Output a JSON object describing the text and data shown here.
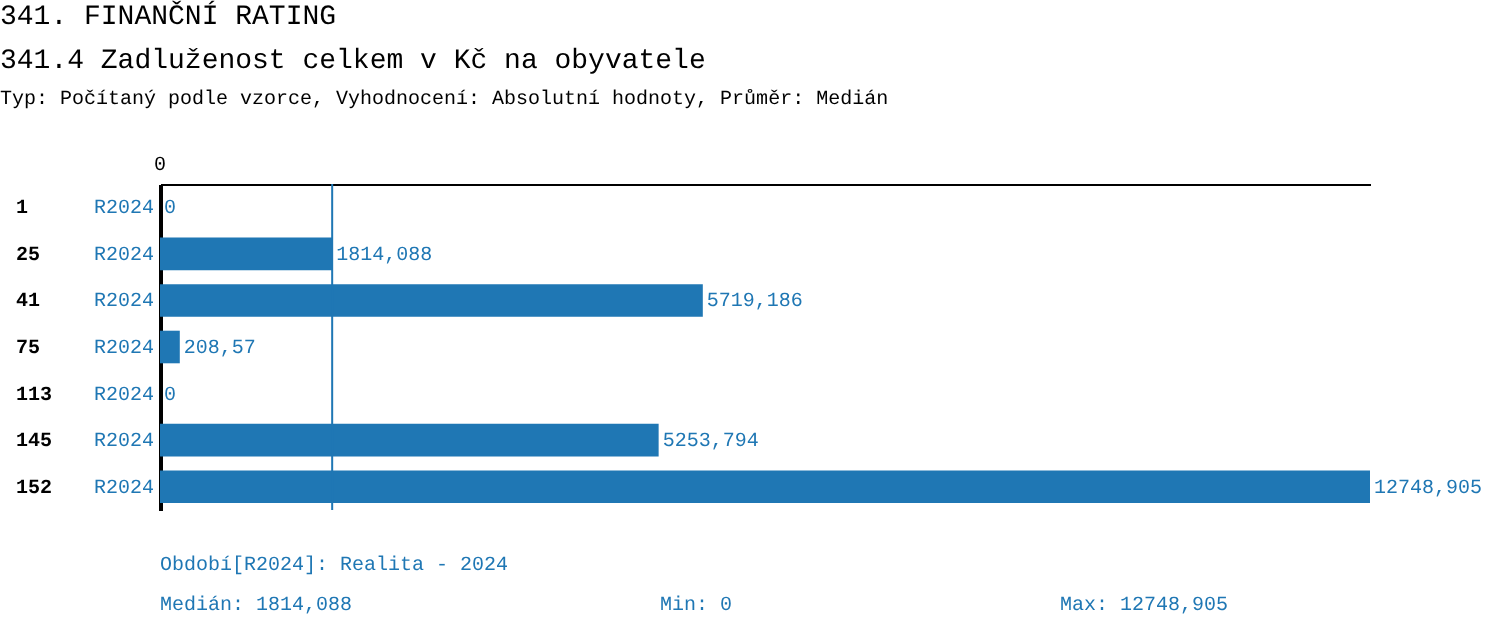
{
  "chart_data": {
    "type": "bar",
    "orientation": "horizontal",
    "title": "341. FINANČNÍ RATING",
    "subtitle": "341.4 Zadluženost celkem v Kč na obyvatele",
    "categories": [
      "1",
      "25",
      "41",
      "75",
      "113",
      "145",
      "152"
    ],
    "series": [
      {
        "name": "R2024",
        "color": "#1f77b4",
        "values": [
          0,
          1814.088,
          5719.186,
          208.57,
          0,
          5253.794,
          12748.905
        ],
        "value_labels": [
          "0",
          "1814,088",
          "5719,186",
          "208,57",
          "0",
          "5253,794",
          "12748,905"
        ]
      }
    ],
    "xlim": [
      0,
      12748.905
    ],
    "ref_lines": [
      {
        "axis": "x",
        "value": 1814.088,
        "color": "#1f77b4"
      }
    ],
    "annotations": [
      "Typ: Počítaný podle vzorce, Vyhodnocení: Absolutní hodnoty, Průměr: Medián",
      "Období[R2024]: Realita - 2024",
      "Medián: 1814,088",
      "Min: 0",
      "Max: 12748,905",
      "0"
    ]
  }
}
